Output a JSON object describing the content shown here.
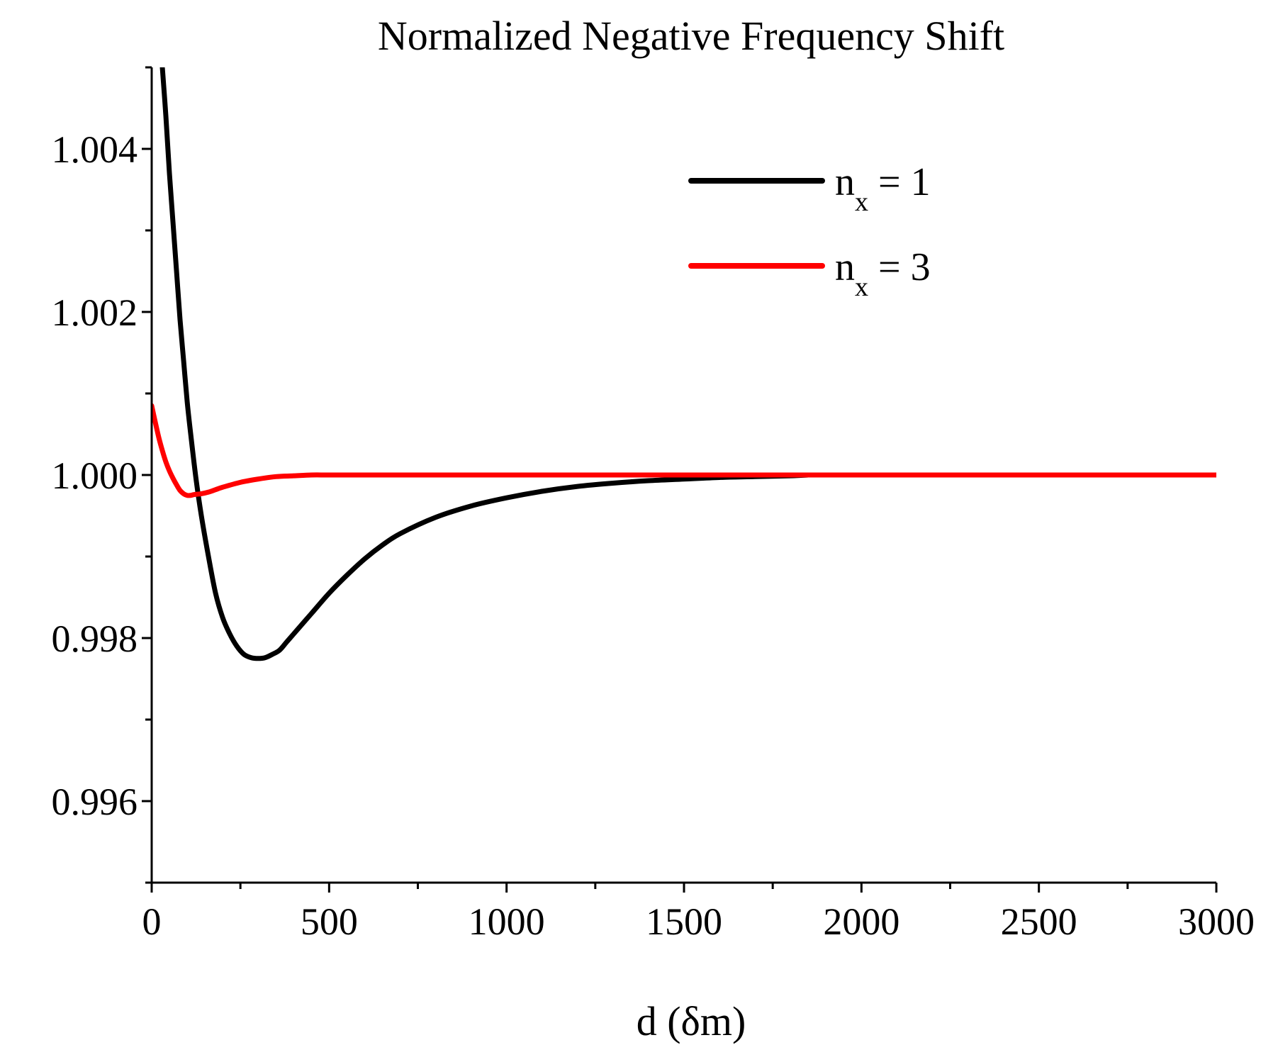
{
  "chart_data": {
    "type": "line",
    "title": "Normalized Negative Frequency Shift",
    "xlabel": "d (δm)",
    "ylabel": "",
    "xlim": [
      0,
      3000
    ],
    "ylim": [
      0.995,
      1.005
    ],
    "x_ticks": [
      0,
      500,
      1000,
      1500,
      2000,
      2500,
      3000
    ],
    "x_tick_labels": [
      "0",
      "500",
      "1000",
      "1500",
      "2000",
      "2500",
      "3000"
    ],
    "x_minor_ticks": [
      250,
      750,
      1250,
      1750,
      2250,
      2750
    ],
    "y_ticks": [
      0.996,
      0.998,
      1.0,
      1.002,
      1.004
    ],
    "y_tick_labels": [
      "0.996",
      "0.998",
      "1.000",
      "1.002",
      "1.004"
    ],
    "y_minor_ticks": [
      0.995,
      0.997,
      0.999,
      1.001,
      1.003,
      1.005
    ],
    "grid": false,
    "legend_position": "top-right",
    "series": [
      {
        "name": "n",
        "legend_subscript": "x",
        "legend_suffix": " = 1",
        "color": "#000000",
        "x": [
          30,
          40,
          50,
          60,
          70,
          80,
          90,
          100,
          110,
          125,
          140,
          160,
          180,
          200,
          220,
          240,
          260,
          280,
          300,
          320,
          340,
          360,
          380,
          400,
          450,
          500,
          550,
          600,
          650,
          700,
          800,
          900,
          1000,
          1100,
          1200,
          1300,
          1400,
          1500,
          1600,
          1700,
          1800,
          1850
        ],
        "y": [
          1.005,
          1.0044,
          1.0037,
          1.0031,
          1.0025,
          1.0019,
          1.0014,
          1.0009,
          1.0005,
          0.99995,
          0.9995,
          0.999,
          0.99855,
          0.99825,
          0.99805,
          0.9979,
          0.9978,
          0.99776,
          0.99775,
          0.99776,
          0.9978,
          0.99785,
          0.99795,
          0.99805,
          0.9983,
          0.99855,
          0.99877,
          0.99897,
          0.99914,
          0.99928,
          0.99948,
          0.99962,
          0.99972,
          0.9998,
          0.99986,
          0.9999,
          0.99993,
          0.99995,
          0.99997,
          0.99998,
          0.99999,
          1.0
        ]
      },
      {
        "name": "n",
        "legend_subscript": "x",
        "legend_suffix": " = 3",
        "color": "#ff0000",
        "x": [
          0,
          10,
          20,
          30,
          40,
          50,
          60,
          70,
          80,
          90,
          100,
          110,
          120,
          140,
          160,
          180,
          200,
          250,
          300,
          350,
          400,
          450,
          500,
          600,
          800,
          1000,
          1500,
          2000,
          2500,
          3000
        ],
        "y": [
          1.00085,
          1.00065,
          1.00046,
          1.0003,
          1.00016,
          1.00005,
          0.99996,
          0.99988,
          0.99981,
          0.99977,
          0.99975,
          0.99975,
          0.99976,
          0.99977,
          0.99979,
          0.99982,
          0.99985,
          0.99991,
          0.99995,
          0.99998,
          0.99999,
          1.0,
          1.0,
          1.0,
          1.0,
          1.0,
          1.0,
          1.0,
          1.0,
          1.0
        ]
      }
    ]
  }
}
